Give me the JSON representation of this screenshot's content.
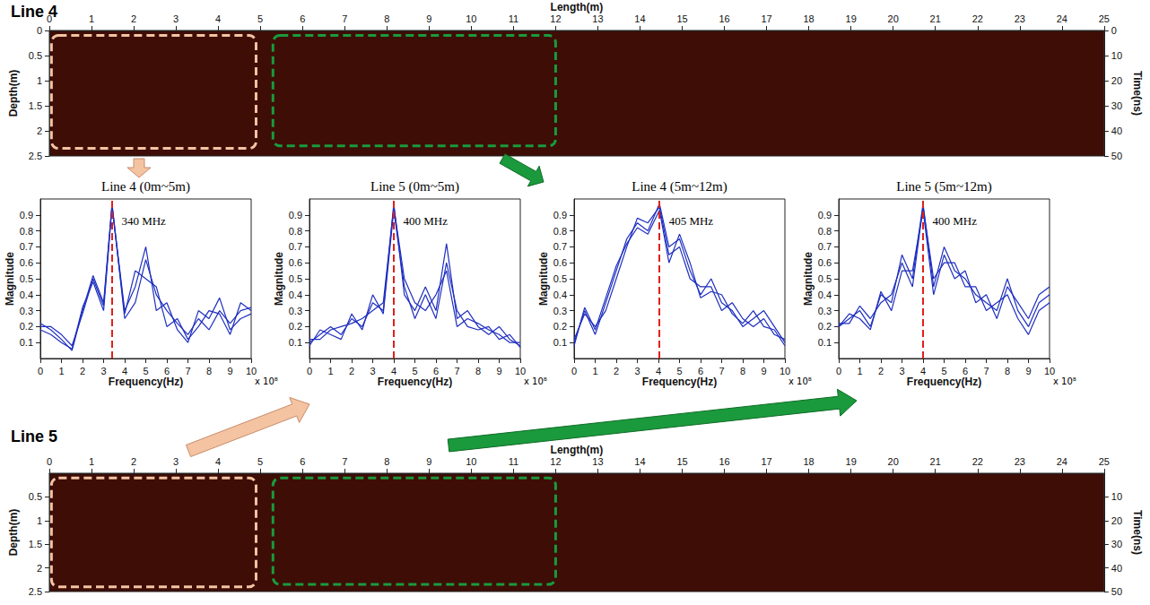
{
  "chart_data": [
    {
      "type": "radargram",
      "title": "Line 4",
      "xlabel": "Length(m)",
      "xlim": [
        0,
        25
      ],
      "xticks": [
        0,
        1,
        2,
        3,
        4,
        5,
        6,
        7,
        8,
        9,
        10,
        11,
        12,
        13,
        14,
        15,
        16,
        17,
        18,
        19,
        20,
        21,
        22,
        23,
        24,
        25
      ],
      "ylabel": "Depth(m)",
      "ylim": [
        0,
        2.5
      ],
      "yticks": [
        0,
        0.5,
        1,
        1.5,
        2,
        2.5
      ],
      "y2label": "Time(ns)",
      "y2lim": [
        0,
        50
      ],
      "y2ticks": [
        0,
        10,
        20,
        30,
        40,
        50
      ],
      "grid": false,
      "regions": [
        {
          "x": [
            0.05,
            4.9
          ],
          "y": [
            0.1,
            2.35
          ],
          "color": "#f4c3a2"
        },
        {
          "x": [
            5.3,
            12
          ],
          "y": [
            0.1,
            2.3
          ],
          "color": "#1a9a3c"
        }
      ]
    },
    {
      "type": "line",
      "title": "Line 4 (0m~5m)",
      "xlabel": "Frequency(Hz)",
      "ylabel": "Magnitude",
      "x_multiplier": "x 10⁸",
      "xlim": [
        0,
        10
      ],
      "xticks": [
        0,
        1,
        2,
        3,
        4,
        5,
        6,
        7,
        8,
        9,
        10
      ],
      "ylim": [
        0,
        1
      ],
      "yticks": [
        0.1,
        0.2,
        0.3,
        0.4,
        0.5,
        0.6,
        0.7,
        0.8,
        0.9
      ],
      "grid": false,
      "peak": 3.4,
      "annotation": "340 MHz",
      "x": [
        0,
        0.5,
        1,
        1.5,
        2,
        2.5,
        3,
        3.4,
        4,
        4.5,
        5,
        5.5,
        6,
        6.5,
        7,
        7.5,
        8,
        8.5,
        9,
        9.5,
        10
      ],
      "series": [
        {
          "color": "#1f2fbf",
          "values": [
            0.22,
            0.18,
            0.12,
            0.05,
            0.3,
            0.52,
            0.35,
            0.97,
            0.25,
            0.35,
            0.62,
            0.4,
            0.3,
            0.22,
            0.15,
            0.25,
            0.18,
            0.3,
            0.22,
            0.3,
            0.32
          ]
        },
        {
          "color": "#1f2fbf",
          "values": [
            0.2,
            0.2,
            0.15,
            0.08,
            0.28,
            0.5,
            0.33,
            0.96,
            0.3,
            0.45,
            0.7,
            0.3,
            0.35,
            0.18,
            0.1,
            0.3,
            0.25,
            0.38,
            0.18,
            0.25,
            0.28
          ]
        },
        {
          "color": "#1f2fbf",
          "values": [
            0.18,
            0.15,
            0.1,
            0.06,
            0.32,
            0.48,
            0.3,
            0.95,
            0.28,
            0.55,
            0.5,
            0.45,
            0.2,
            0.25,
            0.12,
            0.2,
            0.3,
            0.28,
            0.15,
            0.35,
            0.3
          ]
        }
      ]
    },
    {
      "type": "line",
      "title": "Line 5 (0m~5m)",
      "xlabel": "Frequency(Hz)",
      "ylabel": "Magnitude",
      "x_multiplier": "x 10⁸",
      "xlim": [
        0,
        10
      ],
      "xticks": [
        0,
        1,
        2,
        3,
        4,
        5,
        6,
        7,
        8,
        9,
        10
      ],
      "ylim": [
        0,
        1
      ],
      "yticks": [
        0.1,
        0.2,
        0.3,
        0.4,
        0.5,
        0.6,
        0.7,
        0.8,
        0.9
      ],
      "grid": false,
      "peak": 4,
      "annotation": "400 MHz",
      "x": [
        0,
        0.5,
        1,
        1.5,
        2,
        2.5,
        3,
        3.5,
        4,
        4.5,
        5,
        5.5,
        6,
        6.5,
        7,
        7.5,
        8,
        8.5,
        9,
        9.5,
        10
      ],
      "series": [
        {
          "color": "#1f2fbf",
          "values": [
            0.1,
            0.15,
            0.2,
            0.15,
            0.25,
            0.2,
            0.35,
            0.3,
            0.97,
            0.4,
            0.3,
            0.45,
            0.3,
            0.72,
            0.25,
            0.3,
            0.2,
            0.15,
            0.2,
            0.12,
            0.08
          ]
        },
        {
          "color": "#1f2fbf",
          "values": [
            0.12,
            0.12,
            0.18,
            0.2,
            0.22,
            0.25,
            0.3,
            0.35,
            0.95,
            0.5,
            0.35,
            0.3,
            0.4,
            0.55,
            0.2,
            0.25,
            0.22,
            0.18,
            0.15,
            0.1,
            0.1
          ]
        },
        {
          "color": "#1f2fbf",
          "values": [
            0.08,
            0.18,
            0.15,
            0.12,
            0.28,
            0.18,
            0.4,
            0.28,
            0.93,
            0.45,
            0.25,
            0.4,
            0.25,
            0.6,
            0.3,
            0.2,
            0.18,
            0.2,
            0.12,
            0.15,
            0.07
          ]
        }
      ]
    },
    {
      "type": "line",
      "title": "Line 4 (5m~12m)",
      "xlabel": "Frequency(Hz)",
      "ylabel": "Magnitude",
      "x_multiplier": "x 10⁸",
      "xlim": [
        0,
        10
      ],
      "xticks": [
        0,
        1,
        2,
        3,
        4,
        5,
        6,
        7,
        8,
        9,
        10
      ],
      "ylim": [
        0,
        1
      ],
      "yticks": [
        0.1,
        0.2,
        0.3,
        0.4,
        0.5,
        0.6,
        0.7,
        0.8,
        0.9
      ],
      "grid": false,
      "peak": 4.05,
      "annotation": "405 MHz",
      "x": [
        0,
        0.5,
        1,
        1.5,
        2,
        2.5,
        3,
        3.5,
        4.05,
        4.5,
        5,
        5.5,
        6,
        6.5,
        7,
        7.5,
        8,
        8.5,
        9,
        9.5,
        10
      ],
      "series": [
        {
          "color": "#1f2fbf",
          "values": [
            0.1,
            0.3,
            0.15,
            0.35,
            0.55,
            0.75,
            0.85,
            0.8,
            0.97,
            0.7,
            0.75,
            0.55,
            0.4,
            0.5,
            0.35,
            0.3,
            0.2,
            0.25,
            0.3,
            0.2,
            0.1
          ]
        },
        {
          "color": "#1f2fbf",
          "values": [
            0.12,
            0.28,
            0.2,
            0.3,
            0.5,
            0.7,
            0.88,
            0.85,
            0.95,
            0.65,
            0.7,
            0.5,
            0.45,
            0.45,
            0.3,
            0.35,
            0.25,
            0.2,
            0.25,
            0.15,
            0.12
          ]
        },
        {
          "color": "#1f2fbf",
          "values": [
            0.08,
            0.32,
            0.18,
            0.38,
            0.58,
            0.72,
            0.82,
            0.78,
            0.93,
            0.6,
            0.78,
            0.6,
            0.38,
            0.42,
            0.4,
            0.28,
            0.22,
            0.3,
            0.2,
            0.18,
            0.08
          ]
        }
      ]
    },
    {
      "type": "line",
      "title": "Line 5 (5m~12m)",
      "xlabel": "Frequency(Hz)",
      "ylabel": "Magnitude",
      "x_multiplier": "x 10⁸",
      "xlim": [
        0,
        10
      ],
      "xticks": [
        0,
        1,
        2,
        3,
        4,
        5,
        6,
        7,
        8,
        9,
        10
      ],
      "ylim": [
        0,
        1
      ],
      "yticks": [
        0.1,
        0.2,
        0.3,
        0.4,
        0.5,
        0.6,
        0.7,
        0.8,
        0.9
      ],
      "grid": false,
      "peak": 4,
      "annotation": "400 MHz",
      "x": [
        0,
        0.5,
        1,
        1.5,
        2,
        2.5,
        3,
        3.5,
        4,
        4.5,
        5,
        5.5,
        6,
        6.5,
        7,
        7.5,
        8,
        8.5,
        9,
        9.5,
        10
      ],
      "series": [
        {
          "color": "#1f2fbf",
          "values": [
            0.2,
            0.25,
            0.3,
            0.2,
            0.4,
            0.35,
            0.65,
            0.5,
            0.97,
            0.45,
            0.7,
            0.55,
            0.5,
            0.4,
            0.35,
            0.3,
            0.5,
            0.3,
            0.2,
            0.35,
            0.4
          ]
        },
        {
          "color": "#1f2fbf",
          "values": [
            0.22,
            0.22,
            0.33,
            0.25,
            0.35,
            0.4,
            0.6,
            0.45,
            0.95,
            0.5,
            0.6,
            0.6,
            0.45,
            0.45,
            0.3,
            0.35,
            0.4,
            0.25,
            0.15,
            0.3,
            0.35
          ]
        },
        {
          "color": "#1f2fbf",
          "values": [
            0.2,
            0.28,
            0.25,
            0.18,
            0.42,
            0.3,
            0.55,
            0.55,
            0.93,
            0.4,
            0.65,
            0.5,
            0.55,
            0.35,
            0.4,
            0.25,
            0.45,
            0.35,
            0.25,
            0.4,
            0.45
          ]
        }
      ]
    },
    {
      "type": "radargram",
      "title": "Line 5",
      "xlabel": "Length(m)",
      "xlim": [
        0,
        25
      ],
      "xticks": [
        0,
        1,
        2,
        3,
        4,
        5,
        6,
        7,
        8,
        9,
        10,
        11,
        12,
        13,
        14,
        15,
        16,
        17,
        18,
        19,
        20,
        21,
        22,
        23,
        24,
        25
      ],
      "ylabel": "Depth(m)",
      "ylim": [
        0,
        2.5
      ],
      "yticks": [
        0.5,
        1,
        1.5,
        2,
        2.5
      ],
      "y2label": "Time(ns)",
      "y2lim": [
        0,
        50
      ],
      "y2ticks": [
        10,
        20,
        30,
        40,
        50
      ],
      "grid": false,
      "regions": [
        {
          "x": [
            0.05,
            4.9
          ],
          "y": [
            0.1,
            2.4
          ],
          "color": "#f4c3a2"
        },
        {
          "x": [
            5.3,
            12
          ],
          "y": [
            0.1,
            2.35
          ],
          "color": "#1a9a3c"
        }
      ]
    }
  ]
}
